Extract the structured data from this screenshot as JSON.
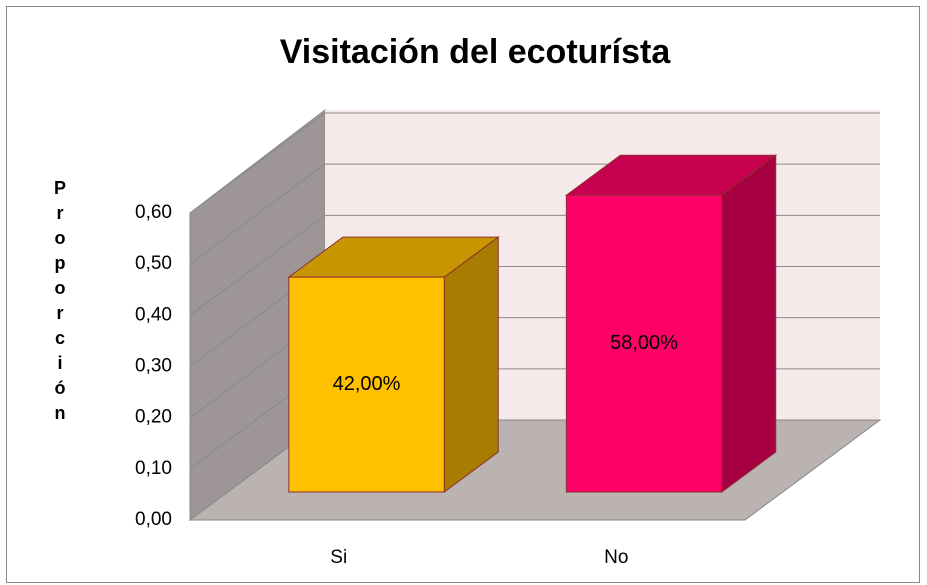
{
  "chart_data": {
    "type": "bar3d",
    "title": "Visitación del ecoturísta",
    "y_label": "Proporción",
    "categories": [
      "Si",
      "No"
    ],
    "values": [
      0.42,
      0.58
    ],
    "value_labels": [
      "42,00%",
      "58,00%"
    ],
    "colors": [
      "#FFC000",
      "#FF0066"
    ],
    "ylim": [
      0,
      0.6
    ],
    "yticks": [
      {
        "value": 0,
        "label": "0,00"
      },
      {
        "value": 0.1,
        "label": "0,10"
      },
      {
        "value": 0.2,
        "label": "0,20"
      },
      {
        "value": 0.3,
        "label": "0,30"
      },
      {
        "value": 0.4,
        "label": "0,40"
      },
      {
        "value": 0.5,
        "label": "0,50"
      },
      {
        "value": 0.6,
        "label": "0,60"
      }
    ],
    "grid": true
  }
}
